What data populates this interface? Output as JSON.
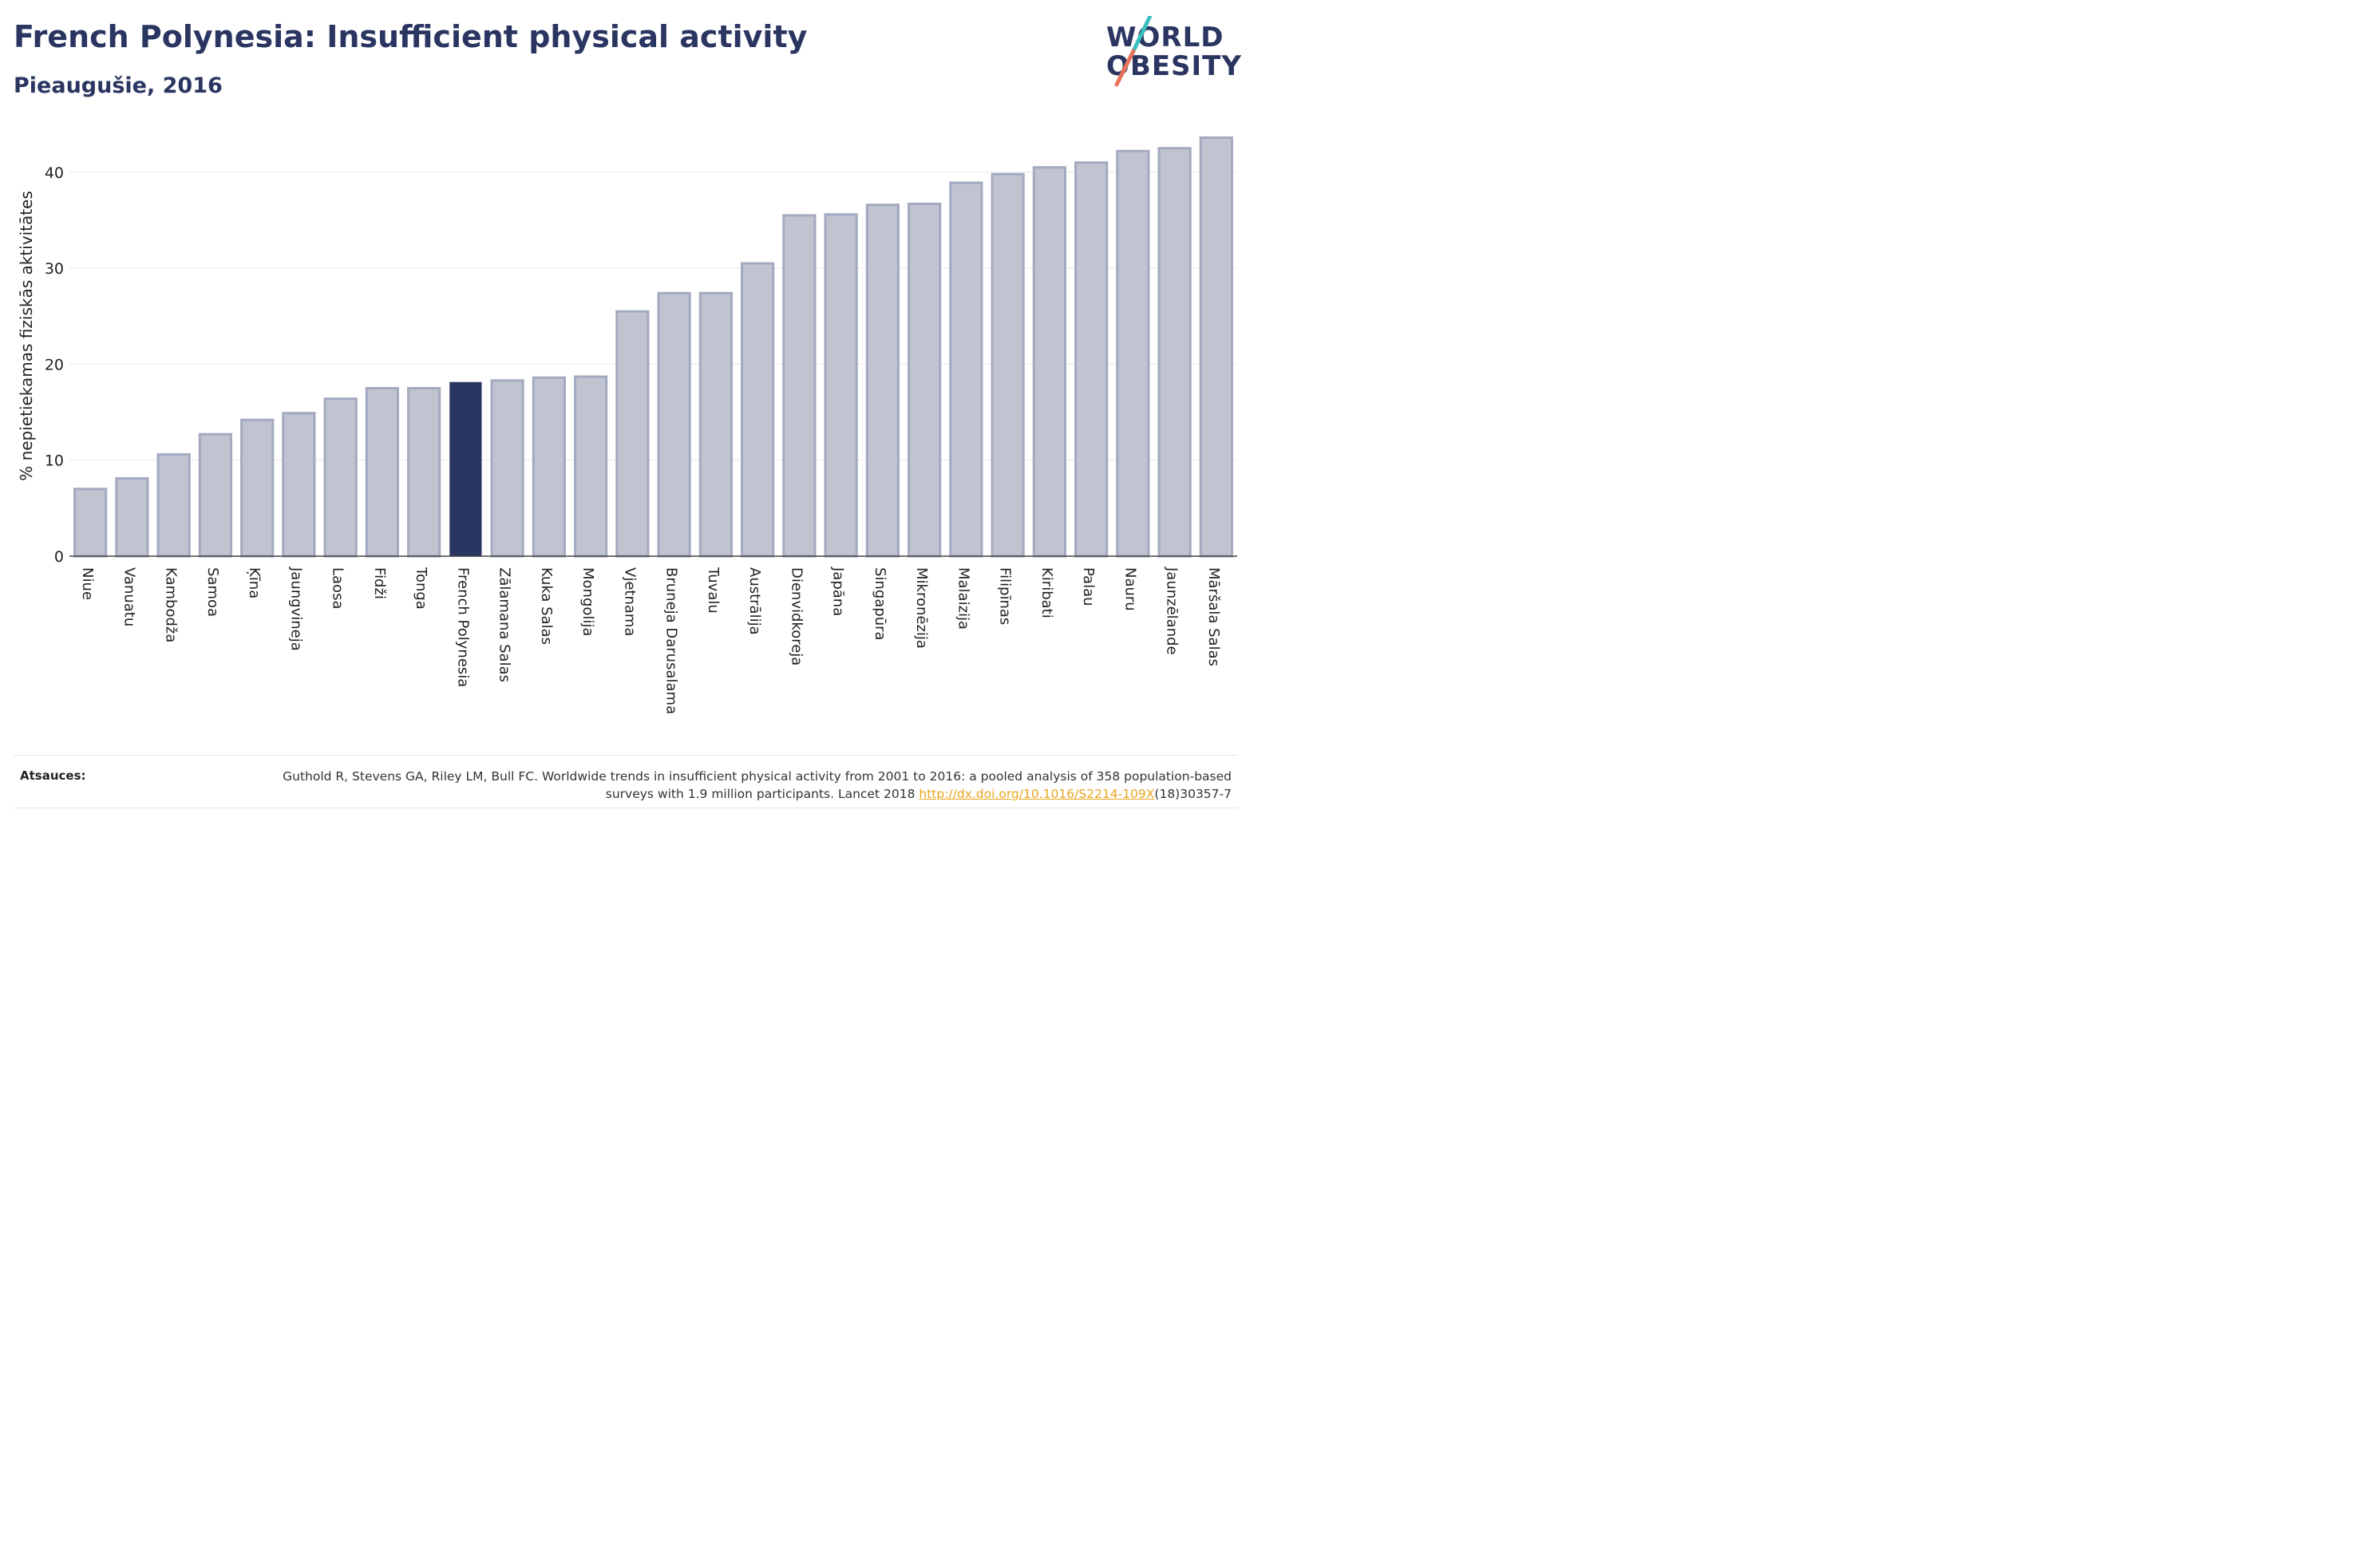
{
  "header": {
    "title": "French Polynesia: Insufficient physical activity",
    "subtitle": "Pieaugušie, 2016"
  },
  "logo": {
    "line1": "WORLD",
    "line2": "OBESITY",
    "slash_colors": [
      "#3cbfbf",
      "#e8735a"
    ]
  },
  "colors": {
    "highlight": "#2a3561",
    "bar_fill": "#c0c4d1",
    "bar_stroke": "#a3a9bf",
    "grid": "#e8e8e8",
    "axis": "#444444"
  },
  "chart_data": {
    "type": "bar",
    "title": "French Polynesia: Insufficient physical activity",
    "subtitle": "Pieaugušie, 2016",
    "ylabel": "% nepietiekamas fiziskās aktivitātes",
    "xlabel": "",
    "ylim": [
      0,
      44.5
    ],
    "yticks": [
      0,
      10,
      20,
      30,
      40
    ],
    "grid": true,
    "highlight_category": "French Polynesia",
    "categories": [
      "Niue",
      "Vanuatu",
      "Kambodža",
      "Samoa",
      "Ķīna",
      "Jaungvineja",
      "Laosa",
      "Fidži",
      "Tonga",
      "French Polynesia",
      "Zālamana Salas",
      "Kuka Salas",
      "Mongolija",
      "Vjetnama",
      "Bruneja Darusalama",
      "Tuvalu",
      "Austrālija",
      "Dienvidkoreja",
      "Japāna",
      "Singapūra",
      "Mikronēzija",
      "Malaizija",
      "Filipīnas",
      "Kiribati",
      "Palau",
      "Nauru",
      "Jaunzēlande",
      "Māršala Salas"
    ],
    "values": [
      7.0,
      8.1,
      10.6,
      12.7,
      14.2,
      14.9,
      16.4,
      17.5,
      17.5,
      18.1,
      18.3,
      18.6,
      18.7,
      25.5,
      27.4,
      27.4,
      30.5,
      35.5,
      35.6,
      36.6,
      36.7,
      38.9,
      39.8,
      40.5,
      41.0,
      42.2,
      42.5,
      43.6
    ]
  },
  "sources": {
    "label": "Atsauces:",
    "text_before": "Guthold R, Stevens GA, Riley LM, Bull FC. Worldwide trends in insufficient physical activity from 2001 to 2016: a pooled analysis of 358 population-based surveys with 1.9 million participants. Lancet 2018 ",
    "link": "http://dx.doi.org/10.1016/S2214-109X",
    "text_after": "(18)30357-7"
  }
}
